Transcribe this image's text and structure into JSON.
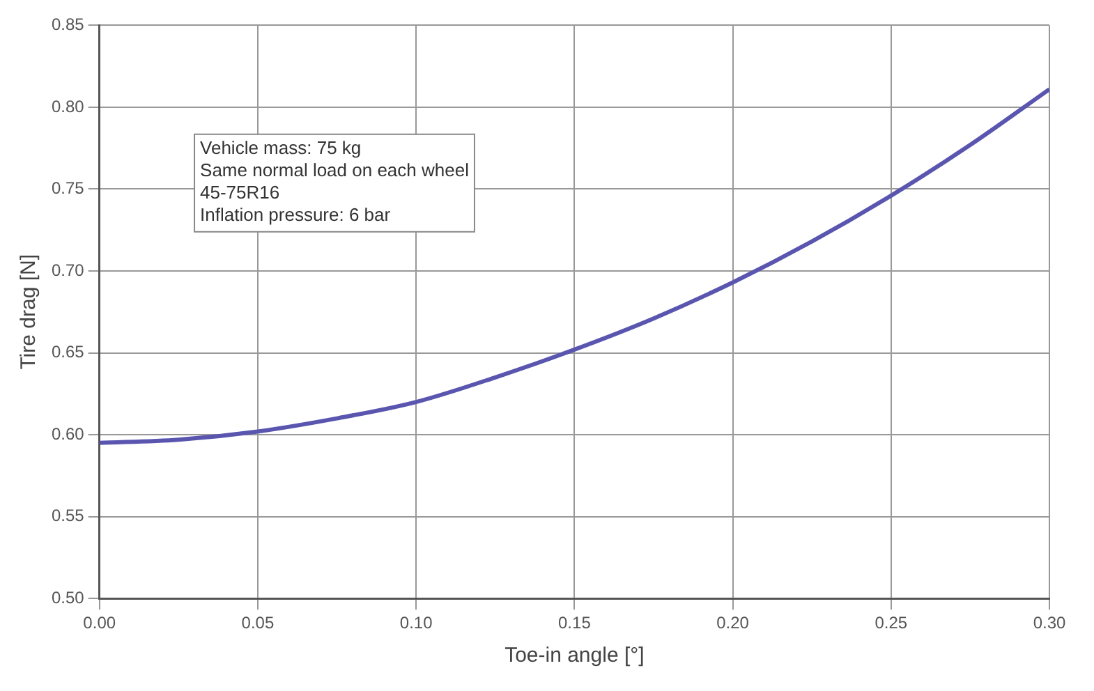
{
  "chart_data": {
    "type": "line",
    "xlabel": "Toe-in angle [°]",
    "ylabel": "Tire drag [N]",
    "x": [
      0,
      0.025,
      0.05,
      0.075,
      0.1,
      0.125,
      0.15,
      0.175,
      0.2,
      0.225,
      0.25,
      0.275,
      0.3
    ],
    "series": [
      {
        "color": "#5a56b0",
        "values": [
          0.595,
          0.597,
          0.602,
          0.61,
          0.62,
          0.635,
          0.652,
          0.671,
          0.693,
          0.718,
          0.746,
          0.777,
          0.811
        ]
      }
    ],
    "xlim": [
      0,
      0.3
    ],
    "xticks": [
      {
        "value": 0,
        "label": "0.00"
      },
      {
        "value": 0.05,
        "label": "0.05"
      },
      {
        "value": 0.1,
        "label": "0.10"
      },
      {
        "value": 0.15,
        "label": "0.15"
      },
      {
        "value": 0.2,
        "label": "0.20"
      },
      {
        "value": 0.25,
        "label": "0.25"
      },
      {
        "value": 0.3,
        "label": "0.30"
      }
    ],
    "ylim": [
      0.5,
      0.85
    ],
    "yticks": [
      {
        "value": 0.5,
        "label": "0.50"
      },
      {
        "value": 0.55,
        "label": "0.55"
      },
      {
        "value": 0.6,
        "label": "0.60"
      },
      {
        "value": 0.65,
        "label": "0.65"
      },
      {
        "value": 0.7,
        "label": "0.70"
      },
      {
        "value": 0.75,
        "label": "0.75"
      },
      {
        "value": 0.8,
        "label": "0.80"
      },
      {
        "value": 0.85,
        "label": "0.85"
      }
    ],
    "grid": true,
    "legend": false,
    "marker": "none",
    "line_style": "solid",
    "annotations": [
      "Vehicle mass: 75 kg",
      "Same normal load on each wheel",
      "45-75R16",
      "Inflation pressure: 6 bar"
    ]
  }
}
